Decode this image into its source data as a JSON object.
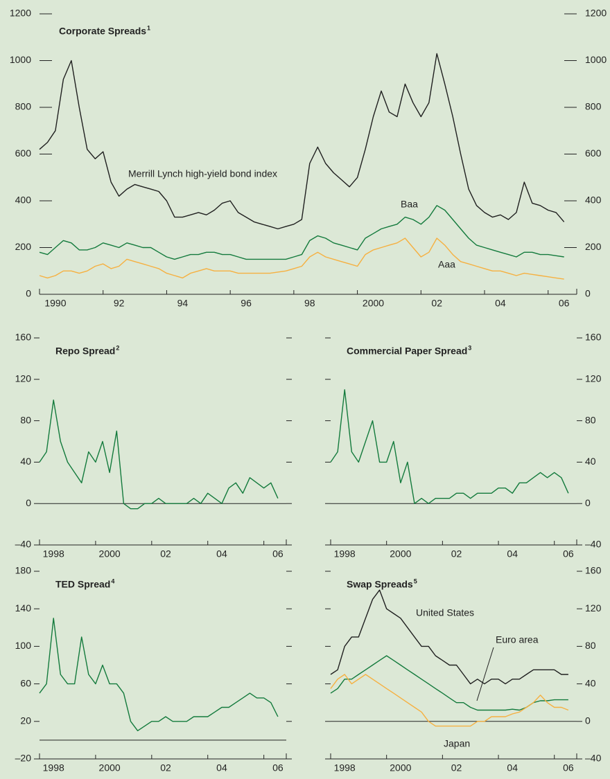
{
  "chart_data": [
    {
      "type": "line",
      "title": "Corporate Spreads",
      "title_footnote": "1",
      "ytick_labels": "both",
      "zero_line": false,
      "xlim": [
        1990,
        2006.9
      ],
      "ylim": [
        0,
        1200
      ],
      "yticks": [
        0,
        200,
        400,
        600,
        800,
        1000,
        1200
      ],
      "xticks": [
        {
          "value": 1990,
          "label": "1990"
        },
        {
          "value": 1992,
          "label": "92"
        },
        {
          "value": 1994,
          "label": "94"
        },
        {
          "value": 1996,
          "label": "96"
        },
        {
          "value": 1998,
          "label": "98"
        },
        {
          "value": 2000,
          "label": "2000"
        },
        {
          "value": 2002,
          "label": "02"
        },
        {
          "value": 2004,
          "label": "04"
        },
        {
          "value": 2006,
          "label": "06"
        }
      ],
      "annotations": [
        "Merrill Lynch high-yield bond index",
        "Baa",
        "Aaa"
      ],
      "x": [
        1990,
        1990.25,
        1990.5,
        1990.75,
        1991,
        1991.25,
        1991.5,
        1991.75,
        1992,
        1992.25,
        1992.5,
        1992.75,
        1993,
        1993.25,
        1993.5,
        1993.75,
        1994,
        1994.25,
        1994.5,
        1994.75,
        1995,
        1995.25,
        1995.5,
        1995.75,
        1996,
        1996.25,
        1996.5,
        1996.75,
        1997,
        1997.25,
        1997.5,
        1997.75,
        1998,
        1998.25,
        1998.5,
        1998.75,
        1999,
        1999.25,
        1999.5,
        1999.75,
        2000,
        2000.25,
        2000.5,
        2000.75,
        2001,
        2001.25,
        2001.5,
        2001.75,
        2002,
        2002.25,
        2002.5,
        2002.75,
        2003,
        2003.25,
        2003.5,
        2003.75,
        2004,
        2004.25,
        2004.5,
        2004.75,
        2005,
        2005.25,
        2005.5,
        2005.75,
        2006,
        2006.25,
        2006.5
      ],
      "series": [
        {
          "name": "Merrill Lynch high-yield bond index",
          "color": "#1f1f1f",
          "values": [
            620,
            650,
            700,
            920,
            1000,
            800,
            620,
            580,
            610,
            480,
            420,
            450,
            470,
            460,
            450,
            440,
            400,
            330,
            330,
            340,
            350,
            340,
            360,
            390,
            400,
            350,
            330,
            310,
            300,
            290,
            280,
            290,
            300,
            320,
            560,
            630,
            560,
            520,
            490,
            460,
            500,
            620,
            760,
            870,
            780,
            760,
            900,
            820,
            760,
            820,
            1030,
            900,
            760,
            600,
            450,
            380,
            350,
            330,
            340,
            320,
            350,
            480,
            390,
            380,
            360,
            350,
            310
          ]
        },
        {
          "name": "Baa",
          "color": "#137a3c",
          "values": [
            180,
            170,
            200,
            230,
            220,
            190,
            190,
            200,
            220,
            210,
            200,
            220,
            210,
            200,
            200,
            180,
            160,
            150,
            160,
            170,
            170,
            180,
            180,
            170,
            170,
            160,
            150,
            150,
            150,
            150,
            150,
            150,
            160,
            170,
            230,
            250,
            240,
            220,
            210,
            200,
            190,
            240,
            260,
            280,
            290,
            300,
            330,
            320,
            300,
            330,
            380,
            360,
            320,
            280,
            240,
            210,
            200,
            190,
            180,
            170,
            160,
            180,
            180,
            170,
            170,
            165,
            160
          ]
        },
        {
          "name": "Aaa",
          "color": "#f6b040",
          "values": [
            80,
            70,
            80,
            100,
            100,
            90,
            100,
            120,
            130,
            110,
            120,
            150,
            140,
            130,
            120,
            110,
            90,
            80,
            70,
            90,
            100,
            110,
            100,
            100,
            100,
            90,
            90,
            90,
            90,
            90,
            95,
            100,
            110,
            120,
            160,
            180,
            160,
            150,
            140,
            130,
            120,
            170,
            190,
            200,
            210,
            220,
            240,
            200,
            160,
            180,
            240,
            210,
            170,
            140,
            130,
            120,
            110,
            100,
            100,
            90,
            80,
            90,
            85,
            80,
            75,
            70,
            65
          ]
        }
      ]
    },
    {
      "type": "line",
      "title": "Repo Spread",
      "title_footnote": "2",
      "ytick_labels": "left",
      "zero_line": true,
      "xlim": [
        1998,
        2006.8
      ],
      "ylim": [
        -40,
        160
      ],
      "yticks": [
        {
          "value": -40,
          "label": "–40"
        },
        0,
        40,
        80,
        120,
        160
      ],
      "xticks": [
        {
          "value": 1998,
          "label": "1998"
        },
        {
          "value": 2000,
          "label": "2000"
        },
        {
          "value": 2002,
          "label": "02"
        },
        {
          "value": 2004,
          "label": "04"
        },
        {
          "value": 2006,
          "label": "06"
        }
      ],
      "x": [
        1998,
        1998.25,
        1998.5,
        1998.75,
        1999,
        1999.25,
        1999.5,
        1999.75,
        2000,
        2000.25,
        2000.5,
        2000.75,
        2001,
        2001.25,
        2001.5,
        2001.75,
        2002,
        2002.25,
        2002.5,
        2002.75,
        2003,
        2003.25,
        2003.5,
        2003.75,
        2004,
        2004.25,
        2004.5,
        2004.75,
        2005,
        2005.25,
        2005.5,
        2005.75,
        2006,
        2006.25,
        2006.5
      ],
      "series": [
        {
          "color": "#137a3c",
          "values": [
            40,
            50,
            100,
            60,
            40,
            30,
            20,
            50,
            40,
            60,
            30,
            70,
            0,
            -5,
            -5,
            0,
            0,
            5,
            0,
            0,
            0,
            0,
            5,
            0,
            10,
            5,
            0,
            15,
            20,
            10,
            25,
            20,
            15,
            20,
            5
          ]
        }
      ]
    },
    {
      "type": "line",
      "title": "Commercial Paper Spread",
      "title_footnote": "3",
      "ytick_labels": "right",
      "zero_line": true,
      "xlim": [
        1998,
        2006.8
      ],
      "ylim": [
        -40,
        160
      ],
      "yticks": [
        {
          "value": -40,
          "label": "–40"
        },
        0,
        40,
        80,
        120,
        160
      ],
      "xticks": [
        {
          "value": 1998,
          "label": "1998"
        },
        {
          "value": 2000,
          "label": "2000"
        },
        {
          "value": 2002,
          "label": "02"
        },
        {
          "value": 2004,
          "label": "04"
        },
        {
          "value": 2006,
          "label": "06"
        }
      ],
      "x": [
        1998,
        1998.25,
        1998.5,
        1998.75,
        1999,
        1999.25,
        1999.5,
        1999.75,
        2000,
        2000.25,
        2000.5,
        2000.75,
        2001,
        2001.25,
        2001.5,
        2001.75,
        2002,
        2002.25,
        2002.5,
        2002.75,
        2003,
        2003.25,
        2003.5,
        2003.75,
        2004,
        2004.25,
        2004.5,
        2004.75,
        2005,
        2005.25,
        2005.5,
        2005.75,
        2006,
        2006.25,
        2006.5
      ],
      "series": [
        {
          "color": "#137a3c",
          "values": [
            40,
            50,
            110,
            50,
            40,
            60,
            80,
            40,
            40,
            60,
            20,
            40,
            0,
            5,
            0,
            5,
            5,
            5,
            10,
            10,
            5,
            10,
            10,
            10,
            15,
            15,
            10,
            20,
            20,
            25,
            30,
            25,
            30,
            25,
            10
          ]
        }
      ]
    },
    {
      "type": "line",
      "title": "TED Spread",
      "title_footnote": "4",
      "ytick_labels": "left",
      "zero_line": true,
      "xlim": [
        1998,
        2006.8
      ],
      "ylim": [
        -20,
        180
      ],
      "yticks": [
        {
          "value": -20,
          "label": "–20"
        },
        20,
        60,
        100,
        140,
        180
      ],
      "xticks": [
        {
          "value": 1998,
          "label": "1998"
        },
        {
          "value": 2000,
          "label": "2000"
        },
        {
          "value": 2002,
          "label": "02"
        },
        {
          "value": 2004,
          "label": "04"
        },
        {
          "value": 2006,
          "label": "06"
        }
      ],
      "x": [
        1998,
        1998.25,
        1998.5,
        1998.75,
        1999,
        1999.25,
        1999.5,
        1999.75,
        2000,
        2000.25,
        2000.5,
        2000.75,
        2001,
        2001.25,
        2001.5,
        2001.75,
        2002,
        2002.25,
        2002.5,
        2002.75,
        2003,
        2003.25,
        2003.5,
        2003.75,
        2004,
        2004.25,
        2004.5,
        2004.75,
        2005,
        2005.25,
        2005.5,
        2005.75,
        2006,
        2006.25,
        2006.5
      ],
      "series": [
        {
          "color": "#137a3c",
          "values": [
            50,
            60,
            130,
            70,
            60,
            60,
            110,
            70,
            60,
            80,
            60,
            60,
            50,
            20,
            10,
            15,
            20,
            20,
            25,
            20,
            20,
            20,
            25,
            25,
            25,
            30,
            35,
            35,
            40,
            45,
            50,
            45,
            45,
            40,
            25
          ]
        }
      ]
    },
    {
      "type": "line",
      "title": "Swap Spreads",
      "title_footnote": "5",
      "ytick_labels": "right",
      "zero_line": true,
      "xlim": [
        1998,
        2006.8
      ],
      "ylim": [
        -40,
        160
      ],
      "yticks": [
        {
          "value": -40,
          "label": "–40"
        },
        0,
        40,
        80,
        120,
        160
      ],
      "xticks": [
        {
          "value": 1998,
          "label": "1998"
        },
        {
          "value": 2000,
          "label": "2000"
        },
        {
          "value": 2002,
          "label": "02"
        },
        {
          "value": 2004,
          "label": "04"
        },
        {
          "value": 2006,
          "label": "06"
        }
      ],
      "annotations": [
        "United States",
        "Euro area",
        "Japan"
      ],
      "x": [
        1998,
        1998.25,
        1998.5,
        1998.75,
        1999,
        1999.25,
        1999.5,
        1999.75,
        2000,
        2000.25,
        2000.5,
        2000.75,
        2001,
        2001.25,
        2001.5,
        2001.75,
        2002,
        2002.25,
        2002.5,
        2002.75,
        2003,
        2003.25,
        2003.5,
        2003.75,
        2004,
        2004.25,
        2004.5,
        2004.75,
        2005,
        2005.25,
        2005.5,
        2005.75,
        2006,
        2006.25,
        2006.5
      ],
      "series": [
        {
          "name": "United States",
          "color": "#1f1f1f",
          "values": [
            50,
            55,
            80,
            90,
            90,
            110,
            130,
            140,
            120,
            115,
            110,
            100,
            90,
            80,
            80,
            70,
            65,
            60,
            60,
            50,
            40,
            45,
            40,
            45,
            45,
            40,
            45,
            45,
            50,
            55,
            55,
            55,
            55,
            50,
            50
          ]
        },
        {
          "name": "Euro area",
          "color": "#137a3c",
          "values": [
            30,
            35,
            45,
            45,
            50,
            55,
            60,
            65,
            70,
            65,
            60,
            55,
            50,
            45,
            40,
            35,
            30,
            25,
            20,
            20,
            15,
            12,
            12,
            12,
            12,
            12,
            13,
            12,
            15,
            20,
            22,
            22,
            23,
            23,
            23
          ]
        },
        {
          "name": "Japan",
          "color": "#f6b040",
          "values": [
            35,
            45,
            50,
            40,
            45,
            50,
            45,
            40,
            35,
            30,
            25,
            20,
            15,
            10,
            0,
            -5,
            -5,
            -5,
            -5,
            -5,
            -5,
            0,
            0,
            5,
            5,
            5,
            8,
            10,
            15,
            20,
            28,
            20,
            15,
            15,
            12
          ]
        }
      ]
    }
  ]
}
